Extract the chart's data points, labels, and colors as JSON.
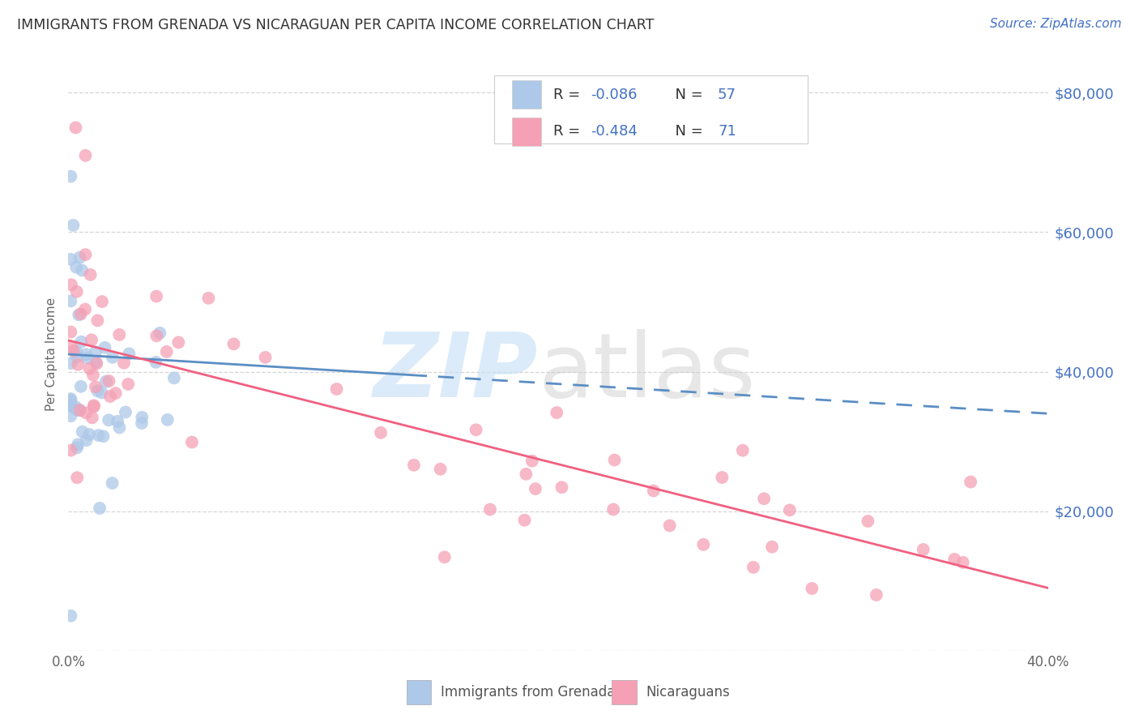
{
  "title": "IMMIGRANTS FROM GRENADA VS NICARAGUAN PER CAPITA INCOME CORRELATION CHART",
  "source": "Source: ZipAtlas.com",
  "ylabel": "Per Capita Income",
  "xlim": [
    0.0,
    0.4
  ],
  "ylim": [
    0,
    85000
  ],
  "ytick_vals": [
    0,
    20000,
    40000,
    60000,
    80000
  ],
  "ytick_labels": [
    "",
    "$20,000",
    "$40,000",
    "$60,000",
    "$80,000"
  ],
  "xtick_vals": [
    0.0,
    0.05,
    0.1,
    0.15,
    0.2,
    0.25,
    0.3,
    0.35,
    0.4
  ],
  "xtick_labels": [
    "0.0%",
    "",
    "",
    "",
    "",
    "",
    "",
    "",
    "40.0%"
  ],
  "legend_r1": "-0.086",
  "legend_n1": "57",
  "legend_r2": "-0.484",
  "legend_n2": "71",
  "color_blue": "#adc8e8",
  "color_pink": "#f5a0b5",
  "line_blue": "#5b8ec4",
  "line_pink": "#f06080",
  "watermark_zip": "ZIP",
  "watermark_atlas": "atlas",
  "background": "#ffffff",
  "grid_color": "#cccccc",
  "title_color": "#333333",
  "source_color": "#4472c4",
  "yaxis_color": "#4472c4",
  "text_dark": "#333333",
  "bottom_label1": "Immigrants from Grenada",
  "bottom_label2": "Nicaraguans",
  "blue_line_x": [
    0.0,
    0.4
  ],
  "blue_line_y": [
    42500,
    34000
  ],
  "pink_line_x": [
    0.0,
    0.4
  ],
  "pink_line_y": [
    44500,
    9000
  ]
}
